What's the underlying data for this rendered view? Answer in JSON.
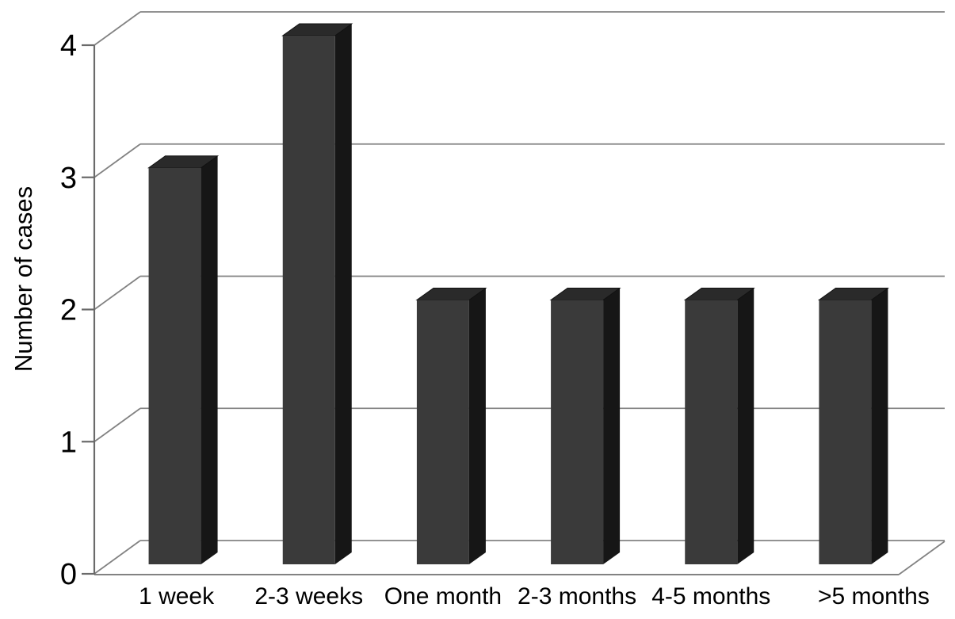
{
  "figure": {
    "kind": "3d-column-chart",
    "background": "#ffffff"
  },
  "chart_data": {
    "type": "bar",
    "style": "3d-columns",
    "title": "",
    "categories": [
      "1 week",
      "2-3 weeks",
      "One month",
      "2-3 months",
      "4-5 months",
      ">5 months"
    ],
    "values": [
      3,
      4,
      2,
      2,
      2,
      2
    ],
    "xlabel": "",
    "ylabel": "Number of cases",
    "yticks": [
      "0",
      "1",
      "2",
      "3",
      "4"
    ],
    "ylim": [
      0,
      4
    ],
    "grid": true,
    "legend": false,
    "colors": {
      "bar_front": "#3a3a3a",
      "bar_top": "#2a2a2a",
      "bar_side": "#161616",
      "bar_edge": "#111111",
      "grid_line": "#828282",
      "axis_line": "#6a6a6a",
      "text": "#000000",
      "background": "#ffffff"
    }
  }
}
